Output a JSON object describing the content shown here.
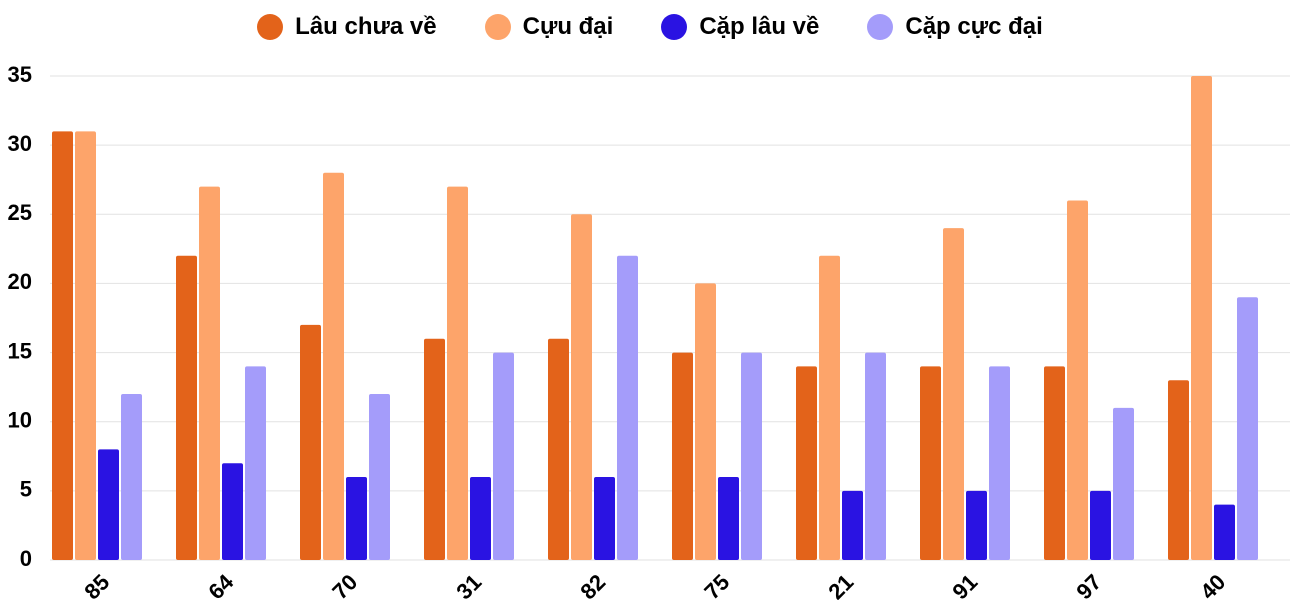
{
  "chart_data": {
    "type": "bar",
    "categories": [
      "85",
      "64",
      "70",
      "31",
      "82",
      "75",
      "21",
      "91",
      "97",
      "40"
    ],
    "series": [
      {
        "name": "Lâu chưa về",
        "color": "#e3631a",
        "values": [
          31,
          22,
          17,
          16,
          16,
          15,
          14,
          14,
          14,
          13
        ]
      },
      {
        "name": "Cựu đại",
        "color": "#fda46a",
        "values": [
          31,
          27,
          28,
          27,
          25,
          20,
          22,
          24,
          26,
          35
        ]
      },
      {
        "name": "Cặp lâu về",
        "color": "#2a13e2",
        "values": [
          8,
          7,
          6,
          6,
          6,
          6,
          5,
          5,
          5,
          4
        ]
      },
      {
        "name": "Cặp cực đại",
        "color": "#a49cfa",
        "values": [
          12,
          14,
          12,
          15,
          22,
          15,
          15,
          14,
          11,
          19
        ]
      }
    ],
    "ylim": [
      0,
      35
    ],
    "yticks": [
      0,
      5,
      10,
      15,
      20,
      25,
      30,
      35
    ],
    "grid": true,
    "legend": "top"
  }
}
